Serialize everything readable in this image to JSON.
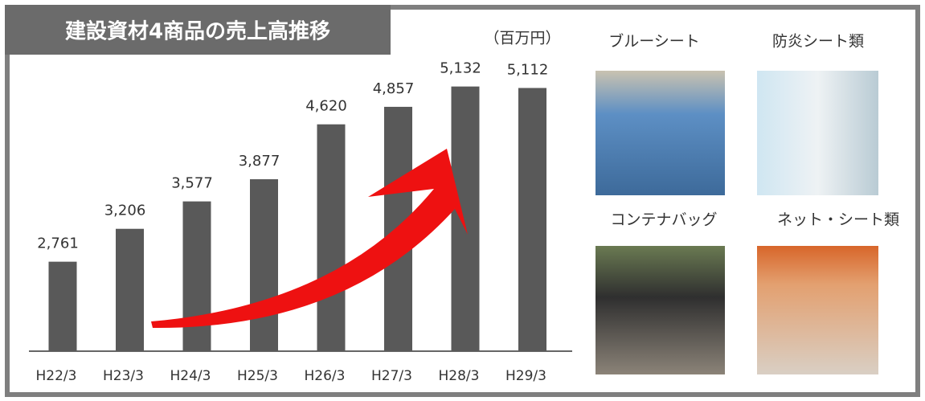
{
  "chart_data": {
    "type": "bar",
    "title": "建設資材4商品の売上高推移",
    "unit_label": "（百万円）",
    "categories": [
      "H22/3",
      "H23/3",
      "H24/3",
      "H25/3",
      "H26/3",
      "H27/3",
      "H28/3",
      "H29/3"
    ],
    "values": [
      2761,
      3206,
      3577,
      3877,
      4620,
      4857,
      5132,
      5112
    ],
    "value_labels": [
      "2,761",
      "3,206",
      "3,577",
      "3,877",
      "4,620",
      "4,857",
      "5,132",
      "5,112"
    ],
    "color": "#595959",
    "ylim": [
      1550,
      5400
    ]
  },
  "photos": [
    {
      "label": "ブルーシート"
    },
    {
      "label": "防炎シート類"
    },
    {
      "label": "コンテナバッグ"
    },
    {
      "label": "ネット・シート類"
    }
  ]
}
